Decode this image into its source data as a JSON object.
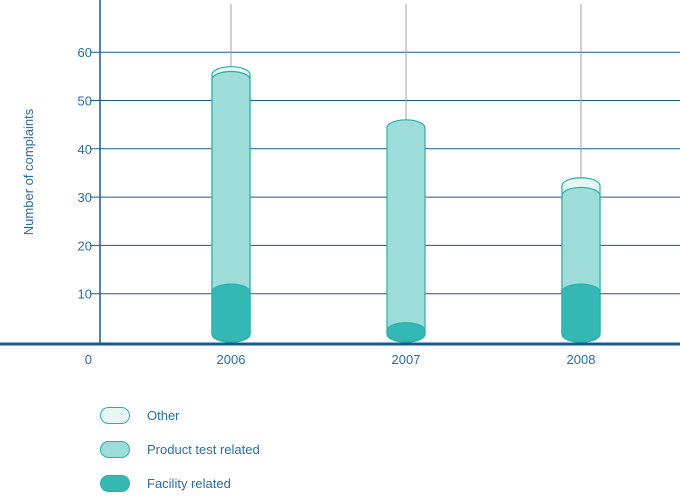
{
  "colors": {
    "axis": "#1f5a86",
    "text": "#2c6d9c",
    "grid": "#1f5a86",
    "drop": "#a0a0a0",
    "outline": "#26b0ad",
    "other_fill": "#e6f6f5",
    "product_fill": "#9ddcd8",
    "facility_fill": "#35b8b3"
  },
  "chart_data": {
    "type": "bar",
    "stacked": true,
    "categories": [
      "2006",
      "2007",
      "2008"
    ],
    "series": [
      {
        "name": "Facility related",
        "values": [
          12,
          4,
          12
        ]
      },
      {
        "name": "Product test related",
        "values": [
          44,
          42,
          20
        ]
      },
      {
        "name": "Other",
        "values": [
          1,
          0,
          2
        ]
      }
    ],
    "xlabel": "",
    "ylabel": "Number of complaints",
    "ylim": [
      0,
      70
    ],
    "yticks": [
      0,
      10,
      20,
      30,
      40,
      50,
      60
    ],
    "grid": true,
    "legend_position": "bottom-left"
  },
  "legend": [
    {
      "label": "Other",
      "key": "other_fill"
    },
    {
      "label": "Product test related",
      "key": "product_fill"
    },
    {
      "label": "Facility related",
      "key": "facility_fill"
    }
  ]
}
